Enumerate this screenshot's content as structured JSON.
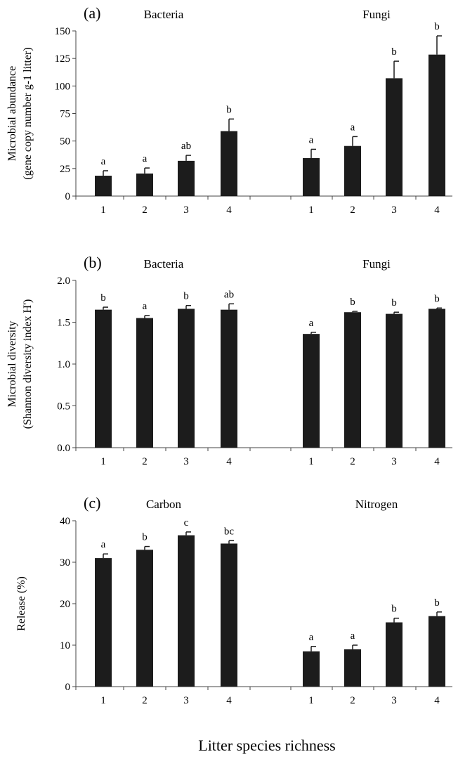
{
  "figure": {
    "xlabel": "Litter species richness"
  },
  "chart_data": [
    {
      "type": "bar",
      "panel_label": "(a)",
      "ylabel_lines": [
        "Microbial abundance",
        "(gene copy number g-1 litter)"
      ],
      "ylim": [
        0,
        150
      ],
      "yticks": [
        0,
        25,
        50,
        75,
        100,
        125,
        150
      ],
      "ytick_labels": [
        "0",
        "25",
        "50",
        "75",
        "100",
        "125",
        "150"
      ],
      "groups": [
        {
          "name": "Bacteria",
          "categories": [
            "1",
            "2",
            "3",
            "4"
          ],
          "values": [
            18.5,
            20.5,
            32,
            59
          ],
          "errors": [
            4.5,
            5,
            5,
            11
          ],
          "letters": [
            "a",
            "a",
            "ab",
            "b"
          ]
        },
        {
          "name": "Fungi",
          "categories": [
            "1",
            "2",
            "3",
            "4"
          ],
          "values": [
            34.5,
            45.5,
            107,
            128.5
          ],
          "errors": [
            8,
            8.5,
            15.5,
            17
          ],
          "letters": [
            "a",
            "a",
            "b",
            "b"
          ]
        }
      ]
    },
    {
      "type": "bar",
      "panel_label": "(b)",
      "ylabel_lines": [
        "Microbial diversity",
        "(Shannon diversity index H')"
      ],
      "ylim": [
        0,
        2
      ],
      "yticks": [
        0,
        0.5,
        1,
        1.5,
        2
      ],
      "ytick_labels": [
        "0.0",
        "0.5",
        "1.0",
        "1.5",
        "2.0"
      ],
      "groups": [
        {
          "name": "Bacteria",
          "categories": [
            "1",
            "2",
            "3",
            "4"
          ],
          "values": [
            1.65,
            1.55,
            1.66,
            1.65
          ],
          "errors": [
            0.03,
            0.03,
            0.04,
            0.07
          ],
          "letters": [
            "b",
            "a",
            "b",
            "ab"
          ]
        },
        {
          "name": "Fungi",
          "categories": [
            "1",
            "2",
            "3",
            "4"
          ],
          "values": [
            1.36,
            1.62,
            1.6,
            1.66
          ],
          "errors": [
            0.02,
            0.01,
            0.02,
            0.01
          ],
          "letters": [
            "a",
            "b",
            "b",
            "b"
          ]
        }
      ]
    },
    {
      "type": "bar",
      "panel_label": "(c)",
      "ylabel_lines": [
        "Release (%)"
      ],
      "ylim": [
        0,
        40
      ],
      "yticks": [
        0,
        10,
        20,
        30,
        40
      ],
      "ytick_labels": [
        "0",
        "10",
        "20",
        "30",
        "40"
      ],
      "groups": [
        {
          "name": "Carbon",
          "categories": [
            "1",
            "2",
            "3",
            "4"
          ],
          "values": [
            31,
            33,
            36.5,
            34.5
          ],
          "errors": [
            1,
            0.8,
            0.8,
            0.7
          ],
          "letters": [
            "a",
            "b",
            "c",
            "bc"
          ]
        },
        {
          "name": "Nitrogen",
          "categories": [
            "1",
            "2",
            "3",
            "4"
          ],
          "values": [
            8.5,
            9,
            15.5,
            17
          ],
          "errors": [
            1.2,
            1,
            1,
            1
          ],
          "letters": [
            "a",
            "a",
            "b",
            "b"
          ]
        }
      ]
    }
  ]
}
